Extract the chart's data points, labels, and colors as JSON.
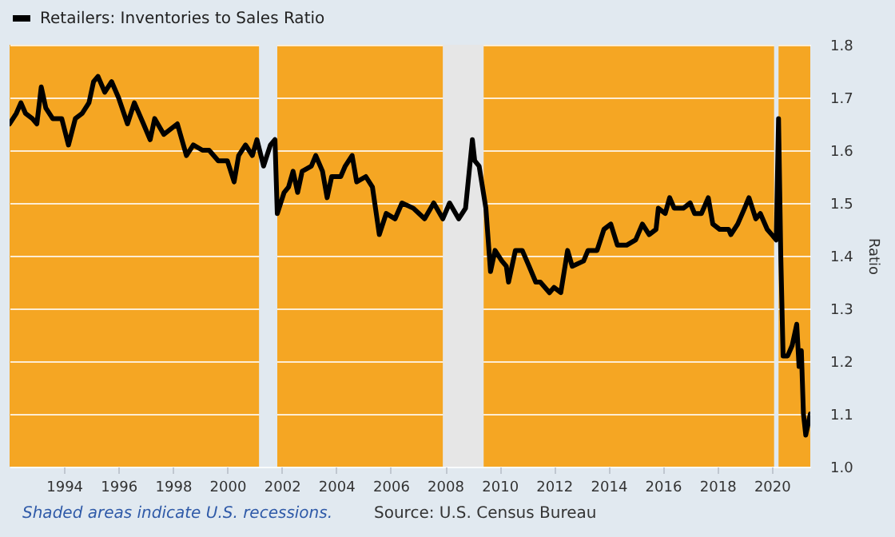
{
  "chart_data": {
    "type": "line",
    "ylabel": "Ratio",
    "xlim": [
      "1992-01",
      "2021-06"
    ],
    "xticks": [
      "1994",
      "1996",
      "1998",
      "2000",
      "2002",
      "2004",
      "2006",
      "2008",
      "2010",
      "2012",
      "2014",
      "2016",
      "2018",
      "2020"
    ],
    "ylim": [
      1.0,
      1.8
    ],
    "yticks": [
      {
        "value": 1.0,
        "label": "1.0"
      },
      {
        "value": 1.1,
        "label": "1.1"
      },
      {
        "value": 1.2,
        "label": "1.2"
      },
      {
        "value": 1.3,
        "label": "1.3"
      },
      {
        "value": 1.4,
        "label": "1.4"
      },
      {
        "value": 1.5,
        "label": "1.5"
      },
      {
        "value": 1.6,
        "label": "1.6"
      },
      {
        "value": 1.7,
        "label": "1.7"
      },
      {
        "value": 1.8,
        "label": "1.8"
      }
    ],
    "grid": "y",
    "legend": "top left",
    "x": [
      "1992-01",
      "1992-04",
      "1992-06",
      "1992-08",
      "1992-11",
      "1993-01",
      "1993-03",
      "1993-05",
      "1993-08",
      "1993-12",
      "1994-03",
      "1994-06",
      "1994-09",
      "1994-12",
      "1995-02",
      "1995-04",
      "1995-07",
      "1995-10",
      "1996-01",
      "1996-05",
      "1996-08",
      "1996-12",
      "1997-03",
      "1997-05",
      "1997-09",
      "1998-03",
      "1998-07",
      "1998-10",
      "1999-02",
      "1999-05",
      "1999-09",
      "2000-01",
      "2000-04",
      "2000-06",
      "2000-09",
      "2000-12",
      "2001-02",
      "2001-05",
      "2001-08",
      "2001-10",
      "2001-11",
      "2002-02",
      "2002-04",
      "2002-06",
      "2002-08",
      "2002-10",
      "2003-02",
      "2003-04",
      "2003-07",
      "2003-09",
      "2003-11",
      "2004-03",
      "2004-05",
      "2004-08",
      "2004-10",
      "2005-02",
      "2005-05",
      "2005-08",
      "2005-11",
      "2006-03",
      "2006-06",
      "2006-11",
      "2007-04",
      "2007-08",
      "2007-12",
      "2008-03",
      "2008-07",
      "2008-10",
      "2009-01",
      "2009-02",
      "2009-04",
      "2009-07",
      "2009-09",
      "2009-11",
      "2010-02",
      "2010-04",
      "2010-05",
      "2010-08",
      "2010-11",
      "2011-02",
      "2011-05",
      "2011-07",
      "2011-11",
      "2012-01",
      "2012-04",
      "2012-07",
      "2012-09",
      "2013-02",
      "2013-04",
      "2013-08",
      "2013-11",
      "2014-02",
      "2014-05",
      "2014-09",
      "2015-01",
      "2015-04",
      "2015-07",
      "2015-10",
      "2015-11",
      "2016-02",
      "2016-04",
      "2016-06",
      "2016-10",
      "2017-01",
      "2017-03",
      "2017-06",
      "2017-09",
      "2017-11",
      "2018-02",
      "2018-06",
      "2018-07",
      "2018-10",
      "2019-01",
      "2019-03",
      "2019-06",
      "2019-08",
      "2019-11",
      "2020-01",
      "2020-03",
      "2020-04",
      "2020-05",
      "2020-06",
      "2020-08",
      "2020-10",
      "2020-12",
      "2021-01",
      "2021-02",
      "2021-03",
      "2021-04",
      "2021-05",
      "2021-06"
    ],
    "series": [
      {
        "name": "Retailers: Inventories to Sales Ratio",
        "color": "#000000",
        "values": [
          1.65,
          1.67,
          1.69,
          1.67,
          1.66,
          1.65,
          1.72,
          1.68,
          1.66,
          1.66,
          1.61,
          1.66,
          1.67,
          1.69,
          1.73,
          1.74,
          1.71,
          1.73,
          1.7,
          1.65,
          1.69,
          1.65,
          1.62,
          1.66,
          1.63,
          1.65,
          1.59,
          1.61,
          1.6,
          1.6,
          1.58,
          1.58,
          1.54,
          1.59,
          1.61,
          1.59,
          1.62,
          1.57,
          1.61,
          1.62,
          1.48,
          1.52,
          1.53,
          1.56,
          1.52,
          1.56,
          1.57,
          1.59,
          1.56,
          1.51,
          1.55,
          1.55,
          1.57,
          1.59,
          1.54,
          1.55,
          1.53,
          1.44,
          1.48,
          1.47,
          1.5,
          1.49,
          1.47,
          1.5,
          1.47,
          1.5,
          1.47,
          1.49,
          1.62,
          1.58,
          1.57,
          1.49,
          1.37,
          1.41,
          1.39,
          1.38,
          1.35,
          1.41,
          1.41,
          1.38,
          1.35,
          1.35,
          1.33,
          1.34,
          1.33,
          1.41,
          1.38,
          1.39,
          1.41,
          1.41,
          1.45,
          1.46,
          1.42,
          1.42,
          1.43,
          1.46,
          1.44,
          1.45,
          1.49,
          1.48,
          1.51,
          1.49,
          1.49,
          1.5,
          1.48,
          1.48,
          1.51,
          1.46,
          1.45,
          1.45,
          1.44,
          1.46,
          1.49,
          1.51,
          1.47,
          1.48,
          1.45,
          1.44,
          1.43,
          1.66,
          1.4,
          1.21,
          1.21,
          1.23,
          1.27,
          1.19,
          1.22,
          1.1,
          1.06,
          1.08,
          1.1
        ]
      }
    ],
    "bands": [
      {
        "axis": "x",
        "from": "2001-03",
        "to": "2001-11",
        "color": "#e1e9f0"
      },
      {
        "axis": "x",
        "from": "2007-12",
        "to": "2009-06",
        "color": "#e6e6e6"
      },
      {
        "axis": "x",
        "from": "2020-02",
        "to": "2020-04",
        "color": "#e1e9f0"
      }
    ],
    "annotations": [
      "Shaded areas indicate U.S. recessions.",
      "Source: U.S. Census Bureau"
    ]
  }
}
